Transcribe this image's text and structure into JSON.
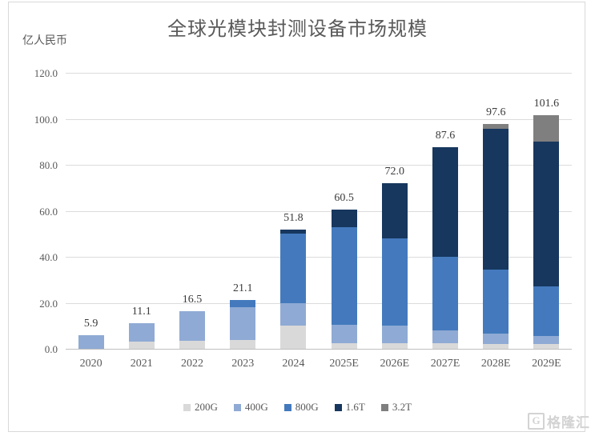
{
  "title": "全球光模块封测设备市场规模",
  "unit_label": "亿人民币",
  "watermark": {
    "logo_letter": "G",
    "text": "格隆汇"
  },
  "chart_data": {
    "type": "bar",
    "stacked": true,
    "title": "全球光模块封测设备市场规模",
    "ylabel": "亿人民币",
    "xlabel": "",
    "ylim": [
      0,
      120
    ],
    "ytick_step": 20,
    "ytick_labels": [
      "0.0",
      "20.0",
      "40.0",
      "60.0",
      "80.0",
      "100.0",
      "120.0"
    ],
    "grid": true,
    "legend_position": "bottom",
    "categories": [
      "2020",
      "2021",
      "2022",
      "2023",
      "2024",
      "2025E",
      "2026E",
      "2027E",
      "2028E",
      "2029E"
    ],
    "series": [
      {
        "name": "200G",
        "color": "#d9d9d9",
        "values": [
          0,
          3.0,
          3.5,
          4.0,
          10.0,
          2.5,
          2.5,
          2.5,
          2.0,
          2.0
        ]
      },
      {
        "name": "400G",
        "color": "#8faad4",
        "values": [
          5.9,
          8.1,
          13.0,
          14.0,
          10.0,
          8.0,
          7.5,
          5.5,
          4.5,
          3.5
        ]
      },
      {
        "name": "800G",
        "color": "#447abd",
        "values": [
          0,
          0,
          0,
          3.1,
          30.0,
          42.5,
          38.0,
          32.0,
          28.0,
          21.5
        ]
      },
      {
        "name": "1.6T",
        "color": "#17375e",
        "values": [
          0,
          0,
          0,
          0,
          1.8,
          7.5,
          24.0,
          47.6,
          61.1,
          63.0
        ]
      },
      {
        "name": "3.2T",
        "color": "#7f7f7f",
        "values": [
          0,
          0,
          0,
          0,
          0,
          0,
          0,
          0,
          2.0,
          11.6
        ]
      }
    ],
    "totals": [
      "5.9",
      "11.1",
      "16.5",
      "21.1",
      "51.8",
      "60.5",
      "72.0",
      "87.6",
      "97.6",
      "101.6"
    ]
  }
}
